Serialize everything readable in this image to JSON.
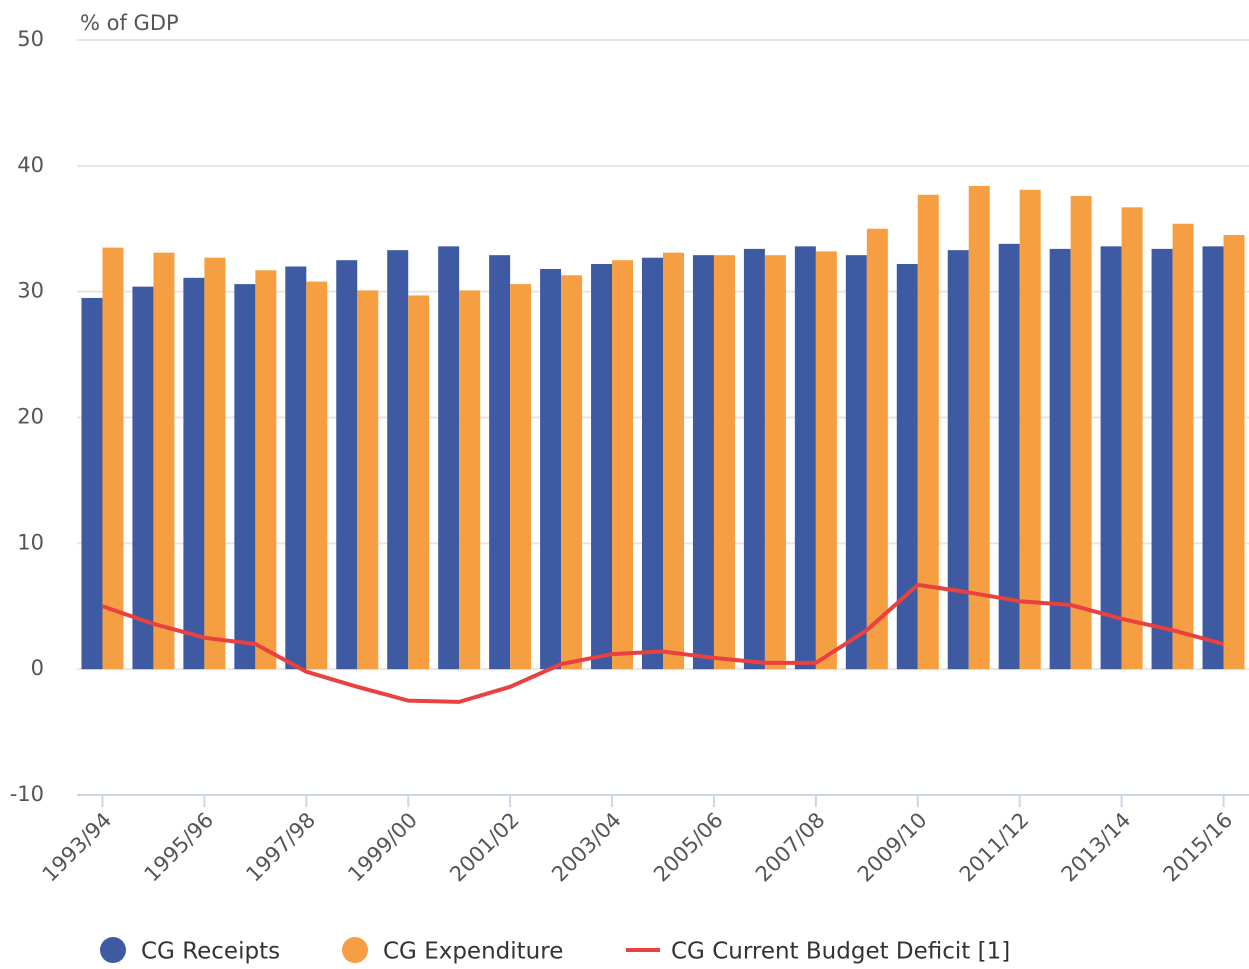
{
  "chart_data": {
    "type": "bar",
    "y_label": "% of GDP",
    "categories": [
      "1993/94",
      null,
      "1995/96",
      null,
      "1997/98",
      null,
      "1999/00",
      null,
      "2001/02",
      null,
      "2003/04",
      null,
      "2005/06",
      null,
      "2007/08",
      null,
      "2009/10",
      null,
      "2011/12",
      null,
      "2013/14",
      null,
      "2015/16"
    ],
    "series": [
      {
        "name": "CG Receipts",
        "type": "bar",
        "color": "#3d5aa3",
        "values": [
          29.5,
          30.4,
          31.1,
          30.6,
          32.0,
          32.5,
          33.3,
          33.6,
          32.9,
          31.8,
          32.2,
          32.7,
          32.9,
          33.4,
          33.6,
          32.9,
          32.2,
          33.3,
          33.8,
          33.4,
          33.6,
          33.4,
          33.6
        ]
      },
      {
        "name": "CG Expenditure",
        "type": "bar",
        "color": "#f59e42",
        "values": [
          33.5,
          33.1,
          32.7,
          31.7,
          30.8,
          30.1,
          29.7,
          30.1,
          30.6,
          31.3,
          32.5,
          33.1,
          32.9,
          32.9,
          33.2,
          35.0,
          37.7,
          38.4,
          38.1,
          37.6,
          36.7,
          35.4,
          34.5
        ]
      },
      {
        "name": "CG Current Budget Deficit [1]",
        "type": "line",
        "color": "#e8413f",
        "values": [
          5.0,
          3.6,
          2.5,
          2.0,
          -0.2,
          -1.4,
          -2.5,
          -2.6,
          -1.4,
          0.4,
          1.2,
          1.4,
          0.9,
          0.5,
          0.5,
          3.1,
          6.7,
          6.1,
          5.4,
          5.1,
          4.0,
          3.1,
          2.0
        ]
      }
    ],
    "ylim": [
      -10,
      50
    ],
    "yticks": [
      -10,
      0,
      10,
      20,
      30,
      40,
      50
    ],
    "grid": true,
    "legend": "bottom"
  }
}
